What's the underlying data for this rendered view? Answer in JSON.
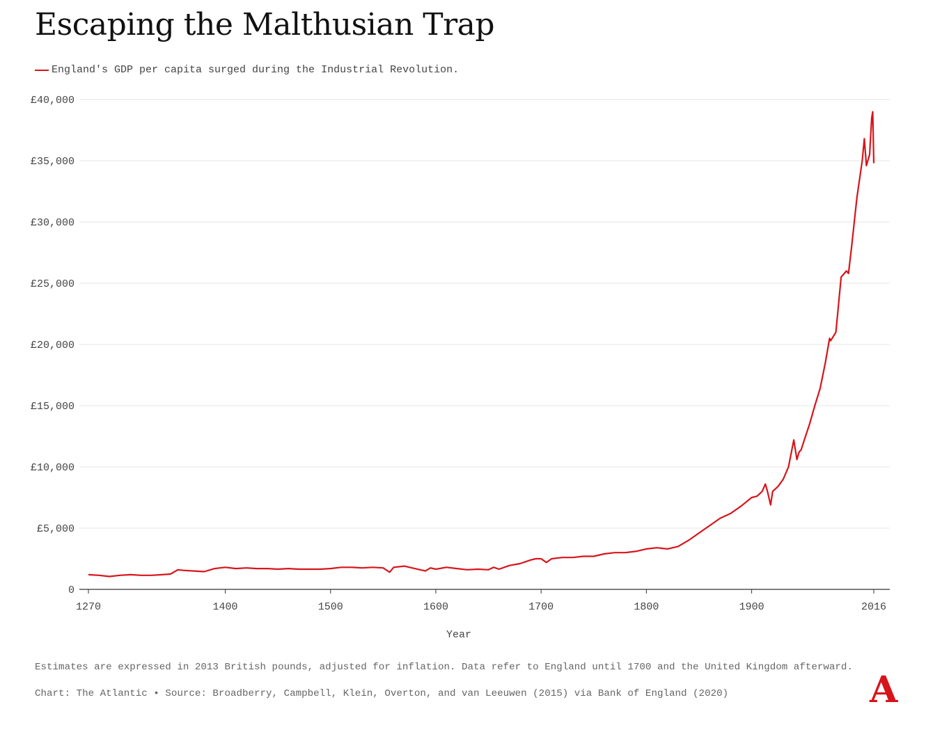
{
  "title": "Escaping the Malthusian Trap",
  "legend": {
    "label": "England's GDP per capita surged during the Industrial Revolution."
  },
  "colors": {
    "series": "#d7141a",
    "grid": "#e6e6e6",
    "axis": "#333333",
    "logo": "#d7141a"
  },
  "chart_data": {
    "type": "line",
    "title": "Escaping the Malthusian Trap",
    "xlabel": "Year",
    "ylabel": "",
    "xlim": [
      1270,
      2016
    ],
    "ylim": [
      0,
      40000
    ],
    "x_ticks": [
      1270,
      1400,
      1500,
      1600,
      1700,
      1800,
      1900,
      2016
    ],
    "y_ticks": [
      0,
      5000,
      10000,
      15000,
      20000,
      25000,
      30000,
      35000,
      40000
    ],
    "y_tick_labels": [
      "0",
      "£5,000",
      "£10,000",
      "£15,000",
      "£20,000",
      "£25,000",
      "£30,000",
      "£35,000",
      "£40,000"
    ],
    "series": [
      {
        "name": "England's GDP per capita surged during the Industrial Revolution.",
        "x": [
          1270,
          1280,
          1290,
          1300,
          1310,
          1320,
          1330,
          1340,
          1348,
          1355,
          1360,
          1370,
          1380,
          1390,
          1395,
          1400,
          1410,
          1420,
          1430,
          1440,
          1450,
          1460,
          1470,
          1480,
          1490,
          1500,
          1510,
          1520,
          1530,
          1540,
          1550,
          1556,
          1560,
          1570,
          1580,
          1590,
          1595,
          1600,
          1610,
          1620,
          1630,
          1640,
          1650,
          1655,
          1660,
          1670,
          1680,
          1690,
          1695,
          1700,
          1705,
          1710,
          1720,
          1730,
          1740,
          1750,
          1760,
          1770,
          1780,
          1790,
          1800,
          1810,
          1820,
          1830,
          1840,
          1850,
          1860,
          1870,
          1880,
          1890,
          1900,
          1905,
          1910,
          1913,
          1915,
          1918,
          1920,
          1925,
          1930,
          1935,
          1940,
          1943,
          1945,
          1947,
          1950,
          1955,
          1960,
          1965,
          1970,
          1974,
          1975,
          1980,
          1985,
          1990,
          1992,
          1995,
          2000,
          2005,
          2007,
          2009,
          2012,
          2014,
          2015,
          2016
        ],
        "values": [
          1200,
          1150,
          1050,
          1150,
          1200,
          1150,
          1150,
          1200,
          1250,
          1600,
          1550,
          1500,
          1450,
          1700,
          1750,
          1800,
          1700,
          1750,
          1700,
          1700,
          1650,
          1700,
          1650,
          1650,
          1650,
          1700,
          1800,
          1800,
          1750,
          1800,
          1750,
          1400,
          1800,
          1900,
          1700,
          1500,
          1750,
          1650,
          1800,
          1700,
          1600,
          1650,
          1600,
          1800,
          1650,
          1950,
          2100,
          2400,
          2500,
          2500,
          2200,
          2500,
          2600,
          2600,
          2700,
          2700,
          2900,
          3000,
          3000,
          3100,
          3300,
          3400,
          3300,
          3500,
          4000,
          4600,
          5200,
          5800,
          6200,
          6800,
          7500,
          7600,
          8000,
          8600,
          8000,
          6900,
          8000,
          8400,
          9000,
          10000,
          12200,
          10600,
          11200,
          11400,
          12200,
          13500,
          15000,
          16400,
          18500,
          20500,
          20300,
          21000,
          25500,
          26000,
          25800,
          28000,
          32000,
          35000,
          36800,
          34600,
          35500,
          38500,
          39000,
          34800
        ]
      }
    ],
    "grid": true,
    "legend_position": "top-left"
  },
  "notes": {
    "note": "Estimates are expressed in 2013 British pounds, adjusted for inflation. Data refer to England until 1700 and the United Kingdom afterward.",
    "source": "Chart: The Atlantic • Source: Broadberry, Campbell, Klein, Overton, and van Leeuwen (2015) via Bank of England (2020)"
  },
  "logo": "A"
}
